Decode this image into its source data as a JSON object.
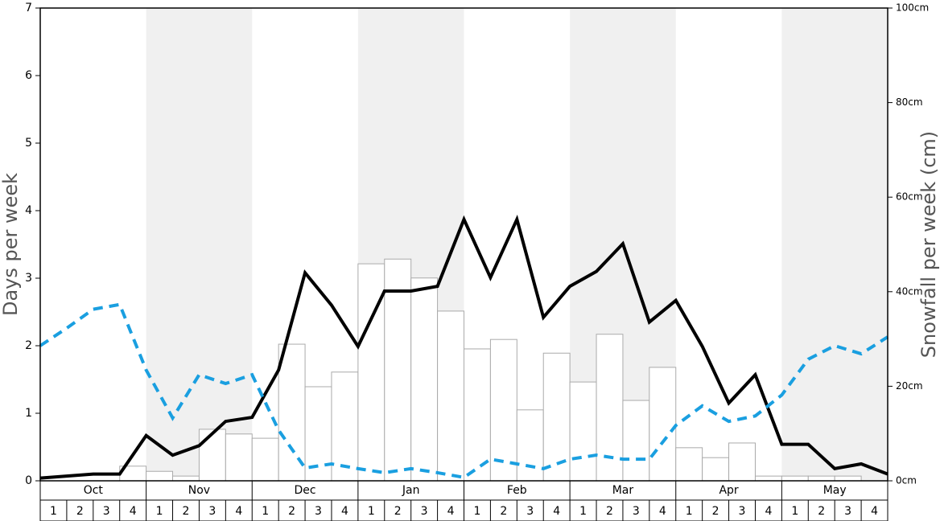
{
  "chart_data": {
    "type": "bar",
    "y_label": "Days per week",
    "y2_label": "Snowfall per week (cm)",
    "categories": [
      "1",
      "2",
      "3",
      "4",
      "1",
      "2",
      "3",
      "4",
      "1",
      "2",
      "3",
      "4",
      "1",
      "2",
      "3",
      "4",
      "1",
      "2",
      "3",
      "4",
      "1",
      "2",
      "3",
      "4",
      "1",
      "2",
      "3",
      "4",
      "1",
      "2",
      "3",
      "4"
    ],
    "months": [
      "Oct",
      "Nov",
      "Dec",
      "Jan",
      "Feb",
      "Mar",
      "Apr",
      "May"
    ],
    "shade_color": "#f0f0f0",
    "ylim": [
      0,
      7
    ],
    "yticks": [
      0,
      1,
      2,
      3,
      4,
      5,
      6,
      7
    ],
    "y2lim": [
      0,
      100
    ],
    "y2ticks": [
      {
        "value": 0,
        "label": "0cm"
      },
      {
        "value": 20,
        "label": "20cm"
      },
      {
        "value": 40,
        "label": "40cm"
      },
      {
        "value": 60,
        "label": "60cm"
      },
      {
        "value": 80,
        "label": "80cm"
      },
      {
        "value": 100,
        "label": "100cm"
      }
    ],
    "xlim": [
      0,
      32
    ],
    "series": [
      {
        "type": "bar",
        "axis": "y2",
        "color": "#ffffff",
        "stroke": "#aaaaaa",
        "values": [
          0,
          0,
          0,
          3.1,
          2.0,
          1.0,
          10.9,
          9.9,
          9.0,
          28.9,
          19.9,
          23.0,
          45.9,
          46.9,
          42.9,
          35.9,
          27.9,
          29.9,
          15.0,
          27.0,
          20.9,
          31.0,
          17.0,
          24.0,
          7.0,
          4.9,
          8.0,
          1.0,
          1.0,
          1.0,
          1.0,
          0
        ]
      },
      {
        "type": "line",
        "color": "#000000",
        "dashed": false,
        "x": [
          0,
          1,
          2,
          3,
          4,
          5,
          6,
          7,
          8,
          9,
          10,
          11,
          12,
          13,
          14,
          15,
          16,
          17,
          18,
          19,
          20,
          21,
          22,
          23,
          24,
          25,
          26,
          27,
          28,
          29,
          30,
          31,
          32
        ],
        "values": [
          0.04,
          0.07,
          0.1,
          0.1,
          0.67,
          0.38,
          0.52,
          0.88,
          0.94,
          1.64,
          3.08,
          2.6,
          1.99,
          2.81,
          2.81,
          2.88,
          3.87,
          3.01,
          3.87,
          2.42,
          2.88,
          3.1,
          3.51,
          2.35,
          2.67,
          1.99,
          1.15,
          1.57,
          0.54,
          0.54,
          0.18,
          0.25,
          0.1
        ]
      },
      {
        "type": "line",
        "color": "#1a9fe0",
        "dashed": true,
        "x": [
          0,
          1,
          2,
          3,
          4,
          5,
          6,
          7,
          8,
          9,
          10,
          11,
          12,
          13,
          14,
          15,
          16,
          17,
          18,
          19,
          20,
          21,
          22,
          23,
          24,
          25,
          26,
          27,
          28,
          29,
          30,
          31,
          32
        ],
        "values": [
          2.0,
          2.26,
          2.54,
          2.61,
          1.64,
          0.93,
          1.57,
          1.44,
          1.57,
          0.75,
          0.19,
          0.25,
          0.18,
          0.12,
          0.18,
          0.12,
          0.05,
          0.32,
          0.25,
          0.18,
          0.32,
          0.38,
          0.32,
          0.32,
          0.82,
          1.11,
          0.88,
          0.96,
          1.27,
          1.8,
          2.0,
          1.88,
          2.13
        ]
      }
    ]
  }
}
